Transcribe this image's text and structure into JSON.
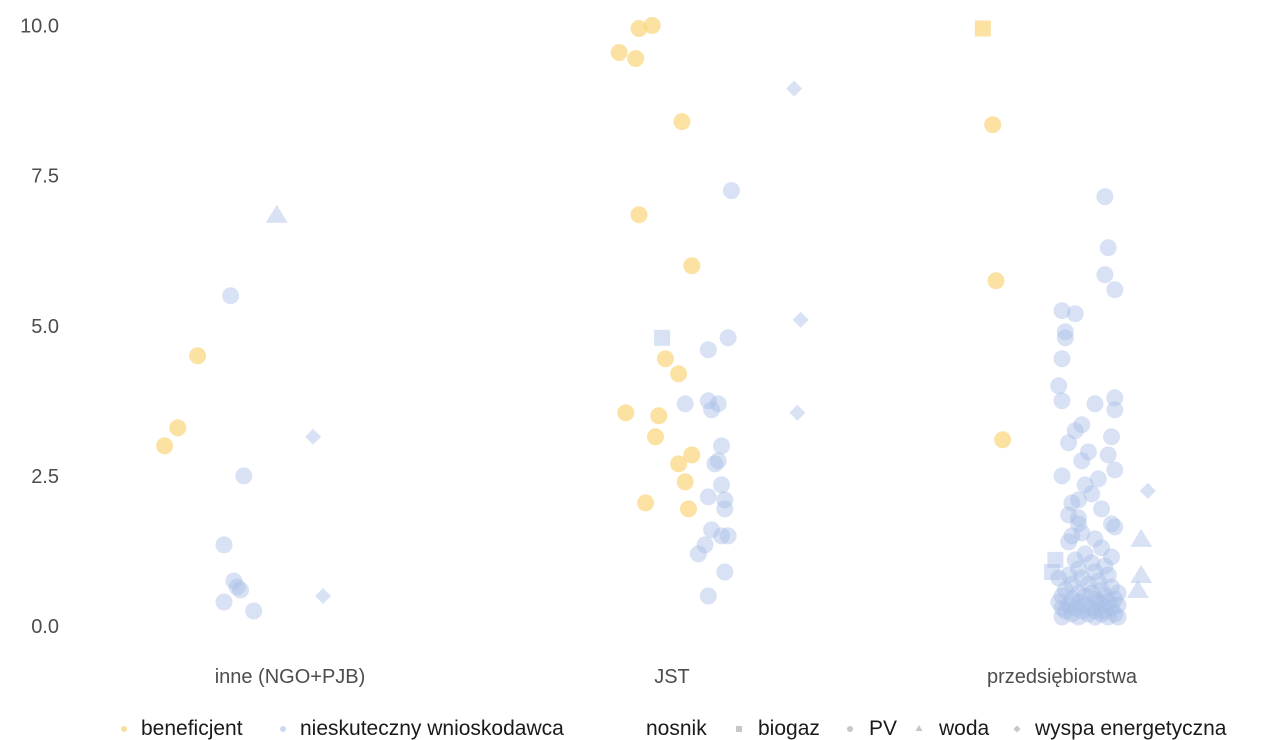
{
  "chart_data": {
    "type": "scatter",
    "title": "",
    "xlabel": "",
    "ylabel": "",
    "categories": [
      "inne (NGO+PJB)",
      "JST",
      "przedsiębiorstwa"
    ],
    "ylim": [
      -0.3,
      10.2
    ],
    "y_ticks": [
      "0.0",
      "2.5",
      "5.0",
      "7.5",
      "10.0"
    ],
    "grid": false,
    "legend_position": "bottom",
    "legend": {
      "color_title": "",
      "colors": [
        {
          "label": "beneficjent",
          "color": "#f9d77e"
        },
        {
          "label": "nieskuteczny wnioskodawca",
          "color": "#a9bfe6"
        }
      ],
      "shape_title": "nosnik",
      "shapes": [
        {
          "label": "biogaz",
          "shape": "square"
        },
        {
          "label": "PV",
          "shape": "circle"
        },
        {
          "label": "woda",
          "shape": "triangle"
        },
        {
          "label": "wyspa energetyczna",
          "shape": "diamond"
        }
      ]
    },
    "series": [
      {
        "name": "beneficjent",
        "shape": "circle",
        "points": [
          {
            "x": 0,
            "y": 3.0,
            "j": -0.38
          },
          {
            "x": 0,
            "y": 3.3,
            "j": -0.34
          },
          {
            "x": 0,
            "y": 4.5,
            "j": -0.28
          },
          {
            "x": 1,
            "y": 10.0,
            "j": -0.06
          },
          {
            "x": 1,
            "y": 9.95,
            "j": -0.1
          },
          {
            "x": 1,
            "y": 9.55,
            "j": -0.16
          },
          {
            "x": 1,
            "y": 9.45,
            "j": -0.11
          },
          {
            "x": 1,
            "y": 8.4,
            "j": 0.03
          },
          {
            "x": 1,
            "y": 6.85,
            "j": -0.1
          },
          {
            "x": 1,
            "y": 6.0,
            "j": 0.06
          },
          {
            "x": 1,
            "y": 4.45,
            "j": -0.02
          },
          {
            "x": 1,
            "y": 4.2,
            "j": 0.02
          },
          {
            "x": 1,
            "y": 3.55,
            "j": -0.14
          },
          {
            "x": 1,
            "y": 3.5,
            "j": -0.04
          },
          {
            "x": 1,
            "y": 3.15,
            "j": -0.05
          },
          {
            "x": 1,
            "y": 2.85,
            "j": 0.06
          },
          {
            "x": 1,
            "y": 2.7,
            "j": 0.02
          },
          {
            "x": 1,
            "y": 2.4,
            "j": 0.04
          },
          {
            "x": 1,
            "y": 2.05,
            "j": -0.08
          },
          {
            "x": 1,
            "y": 1.95,
            "j": 0.05
          },
          {
            "x": 2,
            "y": 8.35,
            "j": -0.21
          },
          {
            "x": 2,
            "y": 5.75,
            "j": -0.2
          },
          {
            "x": 2,
            "y": 3.1,
            "j": -0.18
          }
        ]
      },
      {
        "name": "beneficjent",
        "shape": "square",
        "points": [
          {
            "x": 2,
            "y": 9.95,
            "j": -0.24
          }
        ]
      },
      {
        "name": "nieskuteczny wnioskodawca",
        "shape": "circle",
        "points": [
          {
            "x": 0,
            "y": 5.5,
            "j": -0.18
          },
          {
            "x": 0,
            "y": 2.5,
            "j": -0.14
          },
          {
            "x": 0,
            "y": 1.35,
            "j": -0.2
          },
          {
            "x": 0,
            "y": 0.75,
            "j": -0.17
          },
          {
            "x": 0,
            "y": 0.65,
            "j": -0.16
          },
          {
            "x": 0,
            "y": 0.6,
            "j": -0.15
          },
          {
            "x": 0,
            "y": 0.4,
            "j": -0.2
          },
          {
            "x": 0,
            "y": 0.25,
            "j": -0.11
          },
          {
            "x": 1,
            "y": 7.25,
            "j": 0.18
          },
          {
            "x": 1,
            "y": 4.8,
            "j": 0.17
          },
          {
            "x": 1,
            "y": 4.6,
            "j": 0.11
          },
          {
            "x": 1,
            "y": 3.75,
            "j": 0.11
          },
          {
            "x": 1,
            "y": 3.7,
            "j": 0.04
          },
          {
            "x": 1,
            "y": 3.7,
            "j": 0.14
          },
          {
            "x": 1,
            "y": 3.6,
            "j": 0.12
          },
          {
            "x": 1,
            "y": 3.0,
            "j": 0.15
          },
          {
            "x": 1,
            "y": 2.75,
            "j": 0.14
          },
          {
            "x": 1,
            "y": 2.7,
            "j": 0.13
          },
          {
            "x": 1,
            "y": 2.35,
            "j": 0.15
          },
          {
            "x": 1,
            "y": 2.15,
            "j": 0.11
          },
          {
            "x": 1,
            "y": 2.1,
            "j": 0.16
          },
          {
            "x": 1,
            "y": 1.95,
            "j": 0.16
          },
          {
            "x": 1,
            "y": 1.6,
            "j": 0.12
          },
          {
            "x": 1,
            "y": 1.5,
            "j": 0.15
          },
          {
            "x": 1,
            "y": 1.5,
            "j": 0.17
          },
          {
            "x": 1,
            "y": 1.35,
            "j": 0.1
          },
          {
            "x": 1,
            "y": 1.2,
            "j": 0.08
          },
          {
            "x": 1,
            "y": 0.9,
            "j": 0.16
          },
          {
            "x": 1,
            "y": 0.5,
            "j": 0.11
          },
          {
            "x": 2,
            "y": 7.15,
            "j": 0.13
          },
          {
            "x": 2,
            "y": 6.3,
            "j": 0.14
          },
          {
            "x": 2,
            "y": 5.85,
            "j": 0.13
          },
          {
            "x": 2,
            "y": 5.6,
            "j": 0.16
          },
          {
            "x": 2,
            "y": 5.25,
            "j": 0.0
          },
          {
            "x": 2,
            "y": 5.2,
            "j": 0.04
          },
          {
            "x": 2,
            "y": 4.9,
            "j": 0.01
          },
          {
            "x": 2,
            "y": 4.8,
            "j": 0.01
          },
          {
            "x": 2,
            "y": 4.45,
            "j": 0.0
          },
          {
            "x": 2,
            "y": 4.0,
            "j": -0.01
          },
          {
            "x": 2,
            "y": 3.8,
            "j": 0.16
          },
          {
            "x": 2,
            "y": 3.75,
            "j": 0.0
          },
          {
            "x": 2,
            "y": 3.7,
            "j": 0.1
          },
          {
            "x": 2,
            "y": 3.6,
            "j": 0.16
          },
          {
            "x": 2,
            "y": 3.35,
            "j": 0.06
          },
          {
            "x": 2,
            "y": 3.25,
            "j": 0.04
          },
          {
            "x": 2,
            "y": 3.15,
            "j": 0.15
          },
          {
            "x": 2,
            "y": 3.05,
            "j": 0.02
          },
          {
            "x": 2,
            "y": 2.9,
            "j": 0.08
          },
          {
            "x": 2,
            "y": 2.85,
            "j": 0.14
          },
          {
            "x": 2,
            "y": 2.75,
            "j": 0.06
          },
          {
            "x": 2,
            "y": 2.6,
            "j": 0.16
          },
          {
            "x": 2,
            "y": 2.5,
            "j": 0.0
          },
          {
            "x": 2,
            "y": 2.45,
            "j": 0.11
          },
          {
            "x": 2,
            "y": 2.35,
            "j": 0.07
          },
          {
            "x": 2,
            "y": 2.2,
            "j": 0.09
          },
          {
            "x": 2,
            "y": 2.1,
            "j": 0.05
          },
          {
            "x": 2,
            "y": 2.05,
            "j": 0.03
          },
          {
            "x": 2,
            "y": 1.95,
            "j": 0.12
          },
          {
            "x": 2,
            "y": 1.85,
            "j": 0.02
          },
          {
            "x": 2,
            "y": 1.8,
            "j": 0.05
          },
          {
            "x": 2,
            "y": 1.7,
            "j": 0.05
          },
          {
            "x": 2,
            "y": 1.7,
            "j": 0.15
          },
          {
            "x": 2,
            "y": 1.65,
            "j": 0.16
          },
          {
            "x": 2,
            "y": 1.55,
            "j": 0.06
          },
          {
            "x": 2,
            "y": 1.5,
            "j": 0.03
          },
          {
            "x": 2,
            "y": 1.45,
            "j": 0.1
          },
          {
            "x": 2,
            "y": 1.4,
            "j": 0.02
          },
          {
            "x": 2,
            "y": 1.3,
            "j": 0.12
          },
          {
            "x": 2,
            "y": 1.2,
            "j": 0.07
          },
          {
            "x": 2,
            "y": 1.15,
            "j": 0.15
          },
          {
            "x": 2,
            "y": 1.1,
            "j": 0.04
          },
          {
            "x": 2,
            "y": 1.05,
            "j": 0.09
          },
          {
            "x": 2,
            "y": 1.0,
            "j": 0.13
          },
          {
            "x": 2,
            "y": 0.95,
            "j": 0.05
          },
          {
            "x": 2,
            "y": 0.9,
            "j": 0.1
          },
          {
            "x": 2,
            "y": 0.85,
            "j": 0.02
          },
          {
            "x": 2,
            "y": 0.85,
            "j": 0.14
          },
          {
            "x": 2,
            "y": 0.8,
            "j": 0.06
          },
          {
            "x": 2,
            "y": 0.8,
            "j": -0.01
          },
          {
            "x": 2,
            "y": 0.75,
            "j": 0.11
          },
          {
            "x": 2,
            "y": 0.7,
            "j": 0.03
          },
          {
            "x": 2,
            "y": 0.7,
            "j": 0.08
          },
          {
            "x": 2,
            "y": 0.65,
            "j": 0.15
          },
          {
            "x": 2,
            "y": 0.6,
            "j": 0.01
          },
          {
            "x": 2,
            "y": 0.6,
            "j": 0.12
          },
          {
            "x": 2,
            "y": 0.55,
            "j": 0.05
          },
          {
            "x": 2,
            "y": 0.55,
            "j": 0.09
          },
          {
            "x": 2,
            "y": 0.5,
            "j": 0.0
          },
          {
            "x": 2,
            "y": 0.5,
            "j": 0.07
          },
          {
            "x": 2,
            "y": 0.5,
            "j": 0.13
          },
          {
            "x": 2,
            "y": 0.45,
            "j": 0.03
          },
          {
            "x": 2,
            "y": 0.45,
            "j": 0.1
          },
          {
            "x": 2,
            "y": 0.45,
            "j": 0.16
          },
          {
            "x": 2,
            "y": 0.4,
            "j": -0.01
          },
          {
            "x": 2,
            "y": 0.4,
            "j": 0.05
          },
          {
            "x": 2,
            "y": 0.4,
            "j": 0.11
          },
          {
            "x": 2,
            "y": 0.4,
            "j": 0.14
          },
          {
            "x": 2,
            "y": 0.35,
            "j": 0.02
          },
          {
            "x": 2,
            "y": 0.35,
            "j": 0.07
          },
          {
            "x": 2,
            "y": 0.35,
            "j": 0.12
          },
          {
            "x": 2,
            "y": 0.3,
            "j": 0.0
          },
          {
            "x": 2,
            "y": 0.3,
            "j": 0.04
          },
          {
            "x": 2,
            "y": 0.3,
            "j": 0.09
          },
          {
            "x": 2,
            "y": 0.3,
            "j": 0.15
          },
          {
            "x": 2,
            "y": 0.25,
            "j": 0.01
          },
          {
            "x": 2,
            "y": 0.25,
            "j": 0.06
          },
          {
            "x": 2,
            "y": 0.25,
            "j": 0.1
          },
          {
            "x": 2,
            "y": 0.25,
            "j": 0.13
          },
          {
            "x": 2,
            "y": 0.2,
            "j": 0.03
          },
          {
            "x": 2,
            "y": 0.2,
            "j": 0.08
          },
          {
            "x": 2,
            "y": 0.2,
            "j": 0.12
          },
          {
            "x": 2,
            "y": 0.2,
            "j": 0.16
          },
          {
            "x": 2,
            "y": 0.15,
            "j": 0.0
          },
          {
            "x": 2,
            "y": 0.15,
            "j": 0.05
          },
          {
            "x": 2,
            "y": 0.15,
            "j": 0.1
          },
          {
            "x": 2,
            "y": 0.15,
            "j": 0.14
          },
          {
            "x": 2,
            "y": 0.15,
            "j": 0.17
          },
          {
            "x": 2,
            "y": 0.55,
            "j": 0.17
          },
          {
            "x": 2,
            "y": 0.35,
            "j": 0.17
          }
        ]
      },
      {
        "name": "nieskuteczny wnioskodawca",
        "shape": "square",
        "points": [
          {
            "x": 1,
            "y": 4.8,
            "j": -0.03
          },
          {
            "x": 2,
            "y": 1.1,
            "j": -0.02
          },
          {
            "x": 2,
            "y": 0.9,
            "j": -0.03
          }
        ]
      },
      {
        "name": "nieskuteczny wnioskodawca",
        "shape": "triangle",
        "points": [
          {
            "x": 0,
            "y": 6.85,
            "j": -0.04
          },
          {
            "x": 2,
            "y": 1.45,
            "j": 0.24
          },
          {
            "x": 2,
            "y": 0.85,
            "j": 0.24
          },
          {
            "x": 2,
            "y": 0.6,
            "j": 0.23
          }
        ]
      },
      {
        "name": "nieskuteczny wnioskodawca",
        "shape": "diamond",
        "points": [
          {
            "x": 0,
            "y": 3.15,
            "j": 0.07
          },
          {
            "x": 0,
            "y": 0.5,
            "j": 0.1
          },
          {
            "x": 1,
            "y": 8.95,
            "j": 0.37
          },
          {
            "x": 1,
            "y": 5.1,
            "j": 0.39
          },
          {
            "x": 1,
            "y": 3.55,
            "j": 0.38
          },
          {
            "x": 2,
            "y": 2.25,
            "j": 0.26
          }
        ]
      }
    ]
  }
}
